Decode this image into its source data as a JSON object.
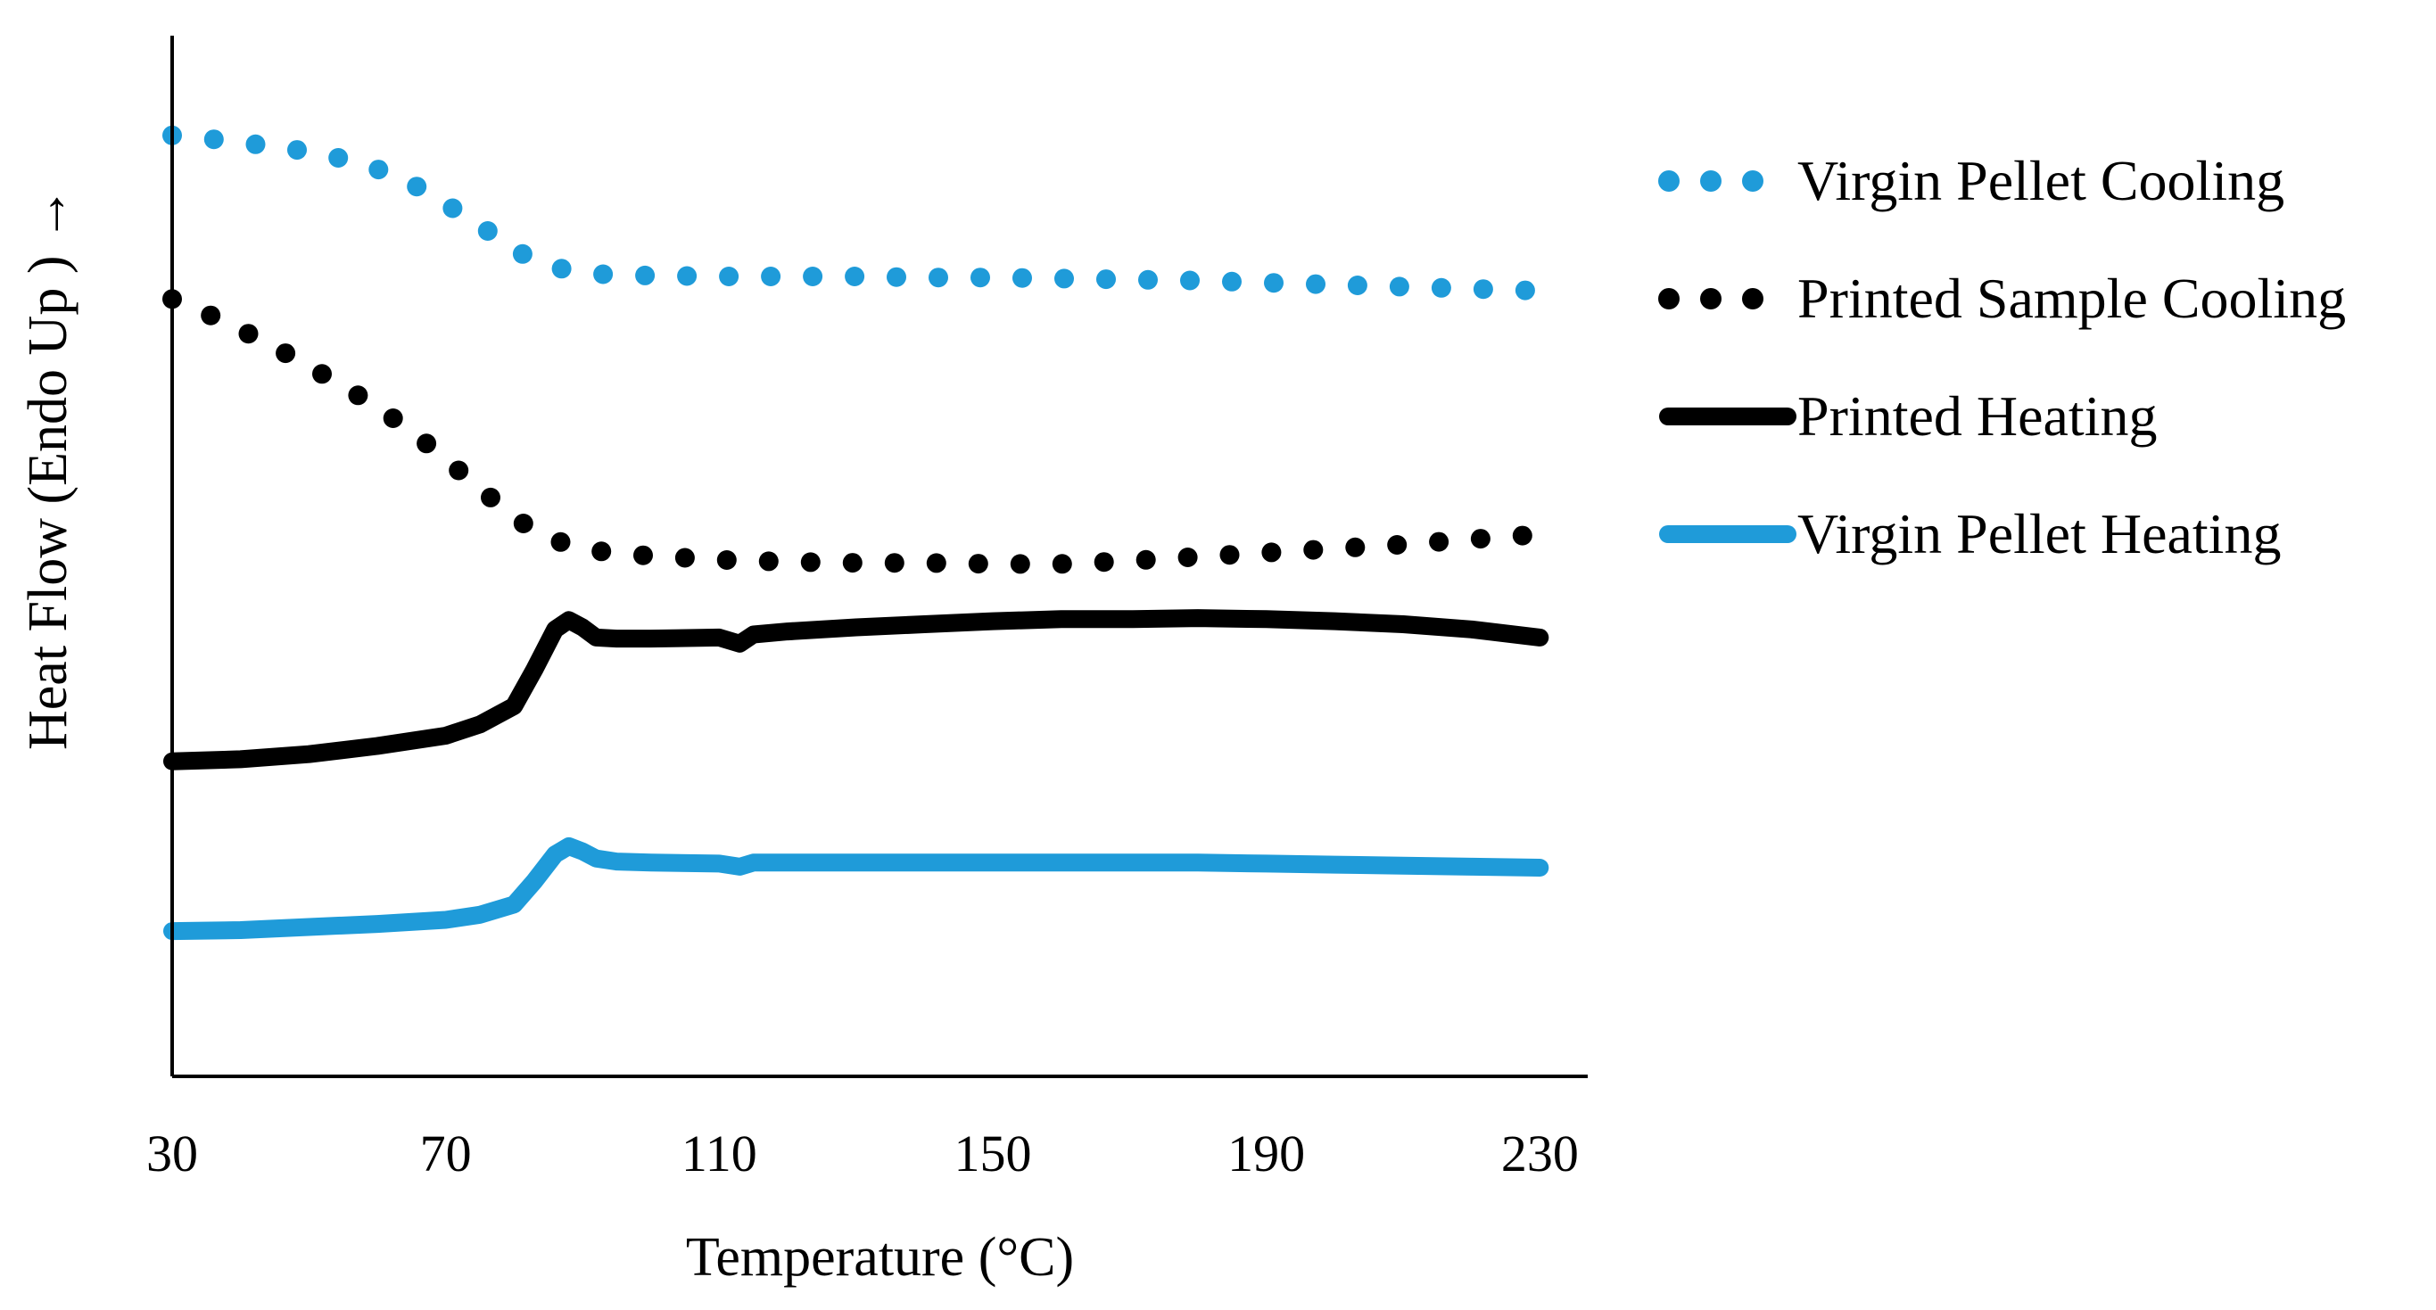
{
  "chart_data": {
    "type": "line",
    "title": "",
    "xlabel": "Temperature (°C)",
    "ylabel": "Heat Flow (Endo Up ) →",
    "xlim": [
      30,
      237
    ],
    "ylim": [
      0,
      100
    ],
    "x_ticks": [
      30,
      70,
      110,
      150,
      190,
      230
    ],
    "y_ticks_shown": false,
    "grid": false,
    "legend_position": "right",
    "series": [
      {
        "name": "Virgin Pellet Cooling",
        "style": "dotted",
        "color": "#1f9bd9",
        "x": [
          30,
          35,
          40,
          45,
          50,
          55,
          60,
          65,
          70,
          75,
          80,
          85,
          90,
          95,
          100,
          110,
          120,
          130,
          140,
          150,
          160,
          170,
          180,
          190,
          200,
          210,
          220,
          230
        ],
        "y": [
          92,
          91.7,
          91.3,
          90.9,
          90.4,
          89.7,
          88.7,
          87.3,
          85.3,
          83.2,
          80.8,
          79.2,
          78.6,
          78.3,
          78.3,
          78.2,
          78.2,
          78.2,
          78.1,
          78.1,
          78,
          77.9,
          77.8,
          77.6,
          77.4,
          77.2,
          77,
          76.8
        ]
      },
      {
        "name": "Printed Sample Cooling",
        "style": "dotted",
        "color": "#000000",
        "x": [
          30,
          35,
          40,
          45,
          50,
          55,
          60,
          65,
          70,
          75,
          80,
          85,
          90,
          95,
          100,
          110,
          120,
          130,
          140,
          150,
          160,
          170,
          180,
          190,
          200,
          210,
          220,
          230
        ],
        "y": [
          76,
          74.6,
          73,
          71.3,
          69.4,
          67.5,
          65.4,
          63.1,
          60.3,
          57.5,
          54.6,
          52.6,
          51.6,
          51.1,
          50.9,
          50.5,
          50.3,
          50.2,
          50.2,
          50.1,
          50.1,
          50.4,
          50.8,
          51.2,
          51.6,
          52,
          52.5,
          53
        ]
      },
      {
        "name": "Printed Heating",
        "style": "solid",
        "color": "#000000",
        "x": [
          30,
          40,
          50,
          60,
          70,
          75,
          80,
          83,
          86,
          88,
          90,
          92,
          95,
          100,
          110,
          113,
          115,
          120,
          130,
          140,
          150,
          160,
          170,
          180,
          190,
          200,
          210,
          220,
          230
        ],
        "y": [
          30.8,
          31,
          31.5,
          32.3,
          33.3,
          34.4,
          36.2,
          39.8,
          43.7,
          44.6,
          43.9,
          42.9,
          42.8,
          42.8,
          42.9,
          42.3,
          43.2,
          43.5,
          43.9,
          44.2,
          44.5,
          44.7,
          44.7,
          44.8,
          44.7,
          44.5,
          44.2,
          43.7,
          42.9
        ]
      },
      {
        "name": "Virgin Pellet Heating",
        "style": "solid",
        "color": "#1f9bd9",
        "x": [
          30,
          40,
          50,
          60,
          70,
          75,
          80,
          83,
          86,
          88,
          90,
          92,
          95,
          100,
          110,
          113,
          115,
          120,
          130,
          140,
          150,
          160,
          170,
          180,
          190,
          200,
          210,
          220,
          230
        ],
        "y": [
          14.2,
          14.3,
          14.6,
          14.9,
          15.3,
          15.8,
          16.8,
          19.1,
          21.7,
          22.5,
          22,
          21.3,
          21,
          20.9,
          20.8,
          20.5,
          20.9,
          20.9,
          20.9,
          20.9,
          20.9,
          20.9,
          20.9,
          20.9,
          20.8,
          20.7,
          20.6,
          20.5,
          20.4
        ]
      }
    ]
  }
}
